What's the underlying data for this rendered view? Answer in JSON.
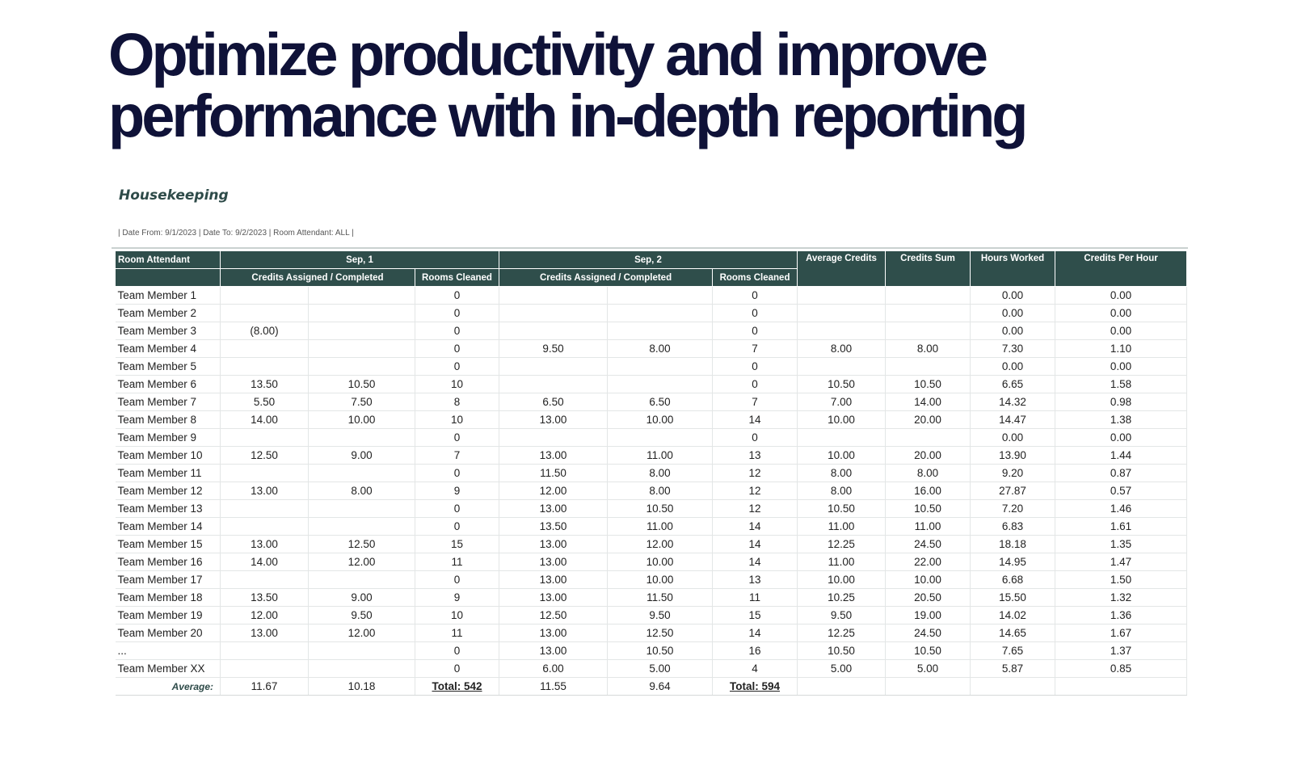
{
  "headline": {
    "line1": "Optimize productivity and improve",
    "line2": "performance with in-depth reporting"
  },
  "report": {
    "title": "Housekeeping",
    "filters": "| Date From: 9/1/2023 | Date To: 9/2/2023 | Room Attendant: ALL |"
  },
  "table": {
    "headers": {
      "attendant": "Room Attendant",
      "day1": "Sep, 1",
      "day2": "Sep, 2",
      "avg_credits": "Average Credits",
      "credits_sum": "Credits Sum",
      "hours_worked": "Hours Worked",
      "credits_per_hour": "Credits Per Hour",
      "credits_ac": "Credits Assigned / Completed",
      "rooms_cleaned": "Rooms Cleaned"
    },
    "rows": [
      [
        "Team Member 1",
        "",
        "",
        "0",
        "",
        "",
        "0",
        "",
        "",
        "0.00",
        "0.00"
      ],
      [
        "Team Member 2",
        "",
        "",
        "0",
        "",
        "",
        "0",
        "",
        "",
        "0.00",
        "0.00"
      ],
      [
        "Team Member 3",
        "(8.00)",
        "",
        "0",
        "",
        "",
        "0",
        "",
        "",
        "0.00",
        "0.00"
      ],
      [
        "Team Member 4",
        "",
        "",
        "0",
        "9.50",
        "8.00",
        "7",
        "8.00",
        "8.00",
        "7.30",
        "1.10"
      ],
      [
        "Team Member 5",
        "",
        "",
        "0",
        "",
        "",
        "0",
        "",
        "",
        "0.00",
        "0.00"
      ],
      [
        "Team Member 6",
        "13.50",
        "10.50",
        "10",
        "",
        "",
        "0",
        "10.50",
        "10.50",
        "6.65",
        "1.58"
      ],
      [
        "Team Member 7",
        "5.50",
        "7.50",
        "8",
        "6.50",
        "6.50",
        "7",
        "7.00",
        "14.00",
        "14.32",
        "0.98"
      ],
      [
        "Team Member 8",
        "14.00",
        "10.00",
        "10",
        "13.00",
        "10.00",
        "14",
        "10.00",
        "20.00",
        "14.47",
        "1.38"
      ],
      [
        "Team Member 9",
        "",
        "",
        "0",
        "",
        "",
        "0",
        "",
        "",
        "0.00",
        "0.00"
      ],
      [
        "Team Member 10",
        "12.50",
        "9.00",
        "7",
        "13.00",
        "11.00",
        "13",
        "10.00",
        "20.00",
        "13.90",
        "1.44"
      ],
      [
        "Team Member 11",
        "",
        "",
        "0",
        "11.50",
        "8.00",
        "12",
        "8.00",
        "8.00",
        "9.20",
        "0.87"
      ],
      [
        "Team Member 12",
        "13.00",
        "8.00",
        "9",
        "12.00",
        "8.00",
        "12",
        "8.00",
        "16.00",
        "27.87",
        "0.57"
      ],
      [
        "Team Member 13",
        "",
        "",
        "0",
        "13.00",
        "10.50",
        "12",
        "10.50",
        "10.50",
        "7.20",
        "1.46"
      ],
      [
        "Team Member 14",
        "",
        "",
        "0",
        "13.50",
        "11.00",
        "14",
        "11.00",
        "11.00",
        "6.83",
        "1.61"
      ],
      [
        "Team Member 15",
        "13.00",
        "12.50",
        "15",
        "13.00",
        "12.00",
        "14",
        "12.25",
        "24.50",
        "18.18",
        "1.35"
      ],
      [
        "Team Member 16",
        "14.00",
        "12.00",
        "11",
        "13.00",
        "10.00",
        "14",
        "11.00",
        "22.00",
        "14.95",
        "1.47"
      ],
      [
        "Team Member 17",
        "",
        "",
        "0",
        "13.00",
        "10.00",
        "13",
        "10.00",
        "10.00",
        "6.68",
        "1.50"
      ],
      [
        "Team Member 18",
        "13.50",
        "9.00",
        "9",
        "13.00",
        "11.50",
        "11",
        "10.25",
        "20.50",
        "15.50",
        "1.32"
      ],
      [
        "Team Member 19",
        "12.00",
        "9.50",
        "10",
        "12.50",
        "9.50",
        "15",
        "9.50",
        "19.00",
        "14.02",
        "1.36"
      ],
      [
        "Team Member 20",
        "13.00",
        "12.00",
        "11",
        "13.00",
        "12.50",
        "14",
        "12.25",
        "24.50",
        "14.65",
        "1.67"
      ],
      [
        "...",
        "",
        "",
        "0",
        "13.00",
        "10.50",
        "16",
        "10.50",
        "10.50",
        "7.65",
        "1.37"
      ],
      [
        "Team Member XX",
        "",
        "",
        "0",
        "6.00",
        "5.00",
        "4",
        "5.00",
        "5.00",
        "5.87",
        "0.85"
      ]
    ],
    "average": {
      "label": "Average:",
      "d1_assigned": "11.67",
      "d1_completed": "10.18",
      "d1_total": "Total: 542",
      "d2_assigned": "11.55",
      "d2_completed": "9.64",
      "d2_total": "Total: 594"
    }
  }
}
